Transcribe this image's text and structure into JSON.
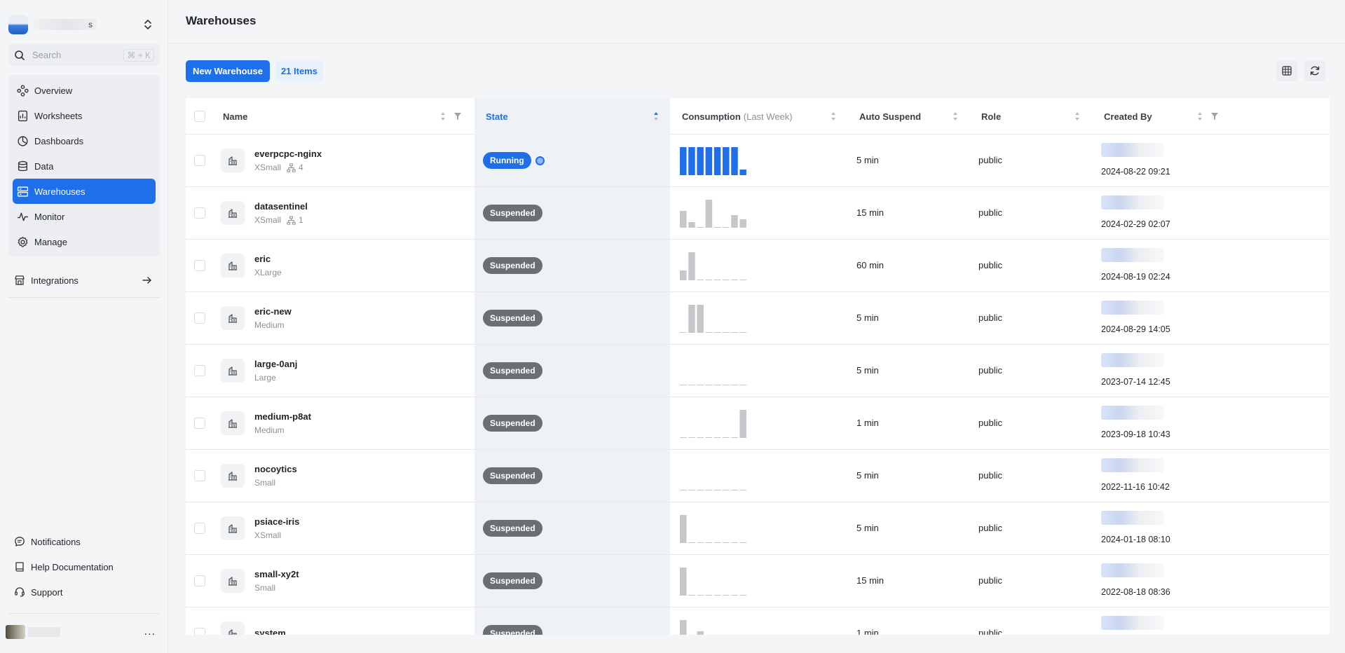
{
  "sidebar": {
    "org_name_suffix": "s",
    "search_placeholder": "Search",
    "search_shortcut": "⌘ + K",
    "nav": [
      {
        "label": "Overview",
        "icon": "overview-icon"
      },
      {
        "label": "Worksheets",
        "icon": "worksheets-icon"
      },
      {
        "label": "Dashboards",
        "icon": "dashboards-icon"
      },
      {
        "label": "Data",
        "icon": "data-icon"
      },
      {
        "label": "Warehouses",
        "icon": "warehouses-icon",
        "active": true
      },
      {
        "label": "Monitor",
        "icon": "monitor-icon"
      },
      {
        "label": "Manage",
        "icon": "manage-icon"
      }
    ],
    "integrations": "Integrations",
    "bottom": [
      {
        "label": "Notifications",
        "icon": "notifications-icon"
      },
      {
        "label": "Help Documentation",
        "icon": "book-icon"
      },
      {
        "label": "Support",
        "icon": "headset-icon"
      }
    ],
    "user_more": "..."
  },
  "header": {
    "title": "Warehouses"
  },
  "toolbar": {
    "new_label": "New Warehouse",
    "count_label": "21 Items"
  },
  "table": {
    "columns": {
      "name": "Name",
      "state": "State",
      "consumption": "Consumption",
      "consumption_sub": "(Last Week)",
      "auto_suspend": "Auto Suspend",
      "role": "Role",
      "created_by": "Created By"
    },
    "rows": [
      {
        "name": "everpcpc-nginx",
        "size": "XSmall",
        "clusters": "4",
        "state": "Running",
        "consumption": [
          1,
          1,
          1,
          1,
          1,
          1,
          1,
          0.2
        ],
        "auto_suspend": "5 min",
        "role": "public",
        "created": "2024-08-22 09:21"
      },
      {
        "name": "datasentinel",
        "size": "XSmall",
        "clusters": "1",
        "state": "Suspended",
        "consumption": [
          0.6,
          0.2,
          0,
          1,
          0,
          0,
          0.45,
          0.3
        ],
        "auto_suspend": "15 min",
        "role": "public",
        "created": "2024-02-29 02:07"
      },
      {
        "name": "eric",
        "size": "XLarge",
        "clusters": "",
        "state": "Suspended",
        "consumption": [
          0.35,
          1,
          0,
          0,
          0,
          0,
          0,
          0
        ],
        "auto_suspend": "60 min",
        "role": "public",
        "created": "2024-08-19 02:24"
      },
      {
        "name": "eric-new",
        "size": "Medium",
        "clusters": "",
        "state": "Suspended",
        "consumption": [
          0,
          1,
          1,
          0,
          0,
          0,
          0,
          0
        ],
        "auto_suspend": "5 min",
        "role": "public",
        "created": "2024-08-29 14:05"
      },
      {
        "name": "large-0anj",
        "size": "Large",
        "clusters": "",
        "state": "Suspended",
        "consumption": [
          0,
          0,
          0,
          0,
          0,
          0,
          0,
          0
        ],
        "auto_suspend": "5 min",
        "role": "public",
        "created": "2023-07-14 12:45"
      },
      {
        "name": "medium-p8at",
        "size": "Medium",
        "clusters": "",
        "state": "Suspended",
        "consumption": [
          0,
          0,
          0,
          0,
          0,
          0,
          0,
          1
        ],
        "auto_suspend": "1 min",
        "role": "public",
        "created": "2023-09-18 10:43"
      },
      {
        "name": "nocoytics",
        "size": "Small",
        "clusters": "",
        "state": "Suspended",
        "consumption": [
          0,
          0,
          0,
          0,
          0,
          0,
          0,
          0
        ],
        "auto_suspend": "5 min",
        "role": "public",
        "created": "2022-11-16 10:42"
      },
      {
        "name": "psiace-iris",
        "size": "XSmall",
        "clusters": "",
        "state": "Suspended",
        "consumption": [
          1,
          0,
          0,
          0,
          0,
          0,
          0,
          0
        ],
        "auto_suspend": "5 min",
        "role": "public",
        "created": "2024-01-18 08:10"
      },
      {
        "name": "small-xy2t",
        "size": "Small",
        "clusters": "",
        "state": "Suspended",
        "consumption": [
          1,
          0,
          0,
          0,
          0,
          0,
          0,
          0
        ],
        "auto_suspend": "15 min",
        "role": "public",
        "created": "2022-08-18 08:36"
      },
      {
        "name": "system",
        "size": "",
        "clusters": "",
        "state": "Suspended",
        "consumption": [
          1,
          0,
          0.6,
          0,
          0,
          0,
          0,
          0
        ],
        "auto_suspend": "1 min",
        "role": "public",
        "created": ""
      }
    ]
  },
  "colors": {
    "accent": "#1f6feb",
    "suspended": "#6b6f75",
    "bar_active": "#1f6feb",
    "bar_idle": "#c5c7cb"
  }
}
